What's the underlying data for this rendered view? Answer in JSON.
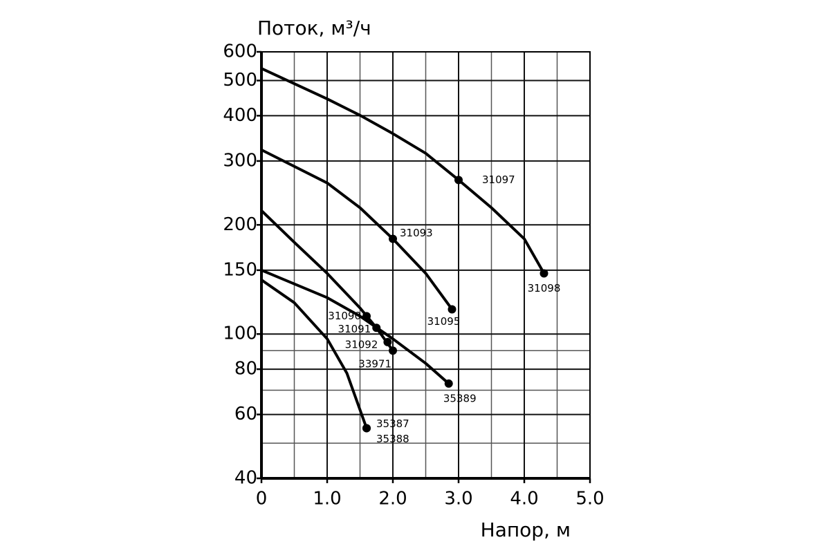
{
  "chart_data": {
    "type": "line",
    "ylabel": "Поток, м³/ч",
    "xlabel": "Напор, м",
    "log_y": true,
    "grid": true,
    "color": "#000000",
    "xlim": [
      0,
      5
    ],
    "ylim": [
      40,
      600
    ],
    "xticks": [
      0,
      {
        "value": 1,
        "label": "1.0"
      },
      {
        "value": 2,
        "label": "2.0"
      },
      {
        "value": 3,
        "label": "3.0"
      },
      {
        "value": 4,
        "label": "4.0"
      },
      {
        "value": 5,
        "label": "5.0"
      }
    ],
    "xminor_ticks": [
      0.5,
      1.5,
      2.5,
      3.5,
      4.5
    ],
    "yticks": [
      40,
      60,
      80,
      100,
      150,
      200,
      300,
      400,
      500,
      600
    ],
    "yminor_ticks": [
      50,
      70,
      90
    ],
    "series": [
      {
        "x": [
          0,
          1,
          1.5,
          2,
          2.5,
          3,
          3.5,
          4,
          4.3
        ],
        "values": [
          540,
          445,
          401,
          357,
          315,
          266,
          223,
          183,
          147
        ]
      },
      {
        "x": [
          0,
          1,
          1.5,
          2,
          2.5,
          2.9
        ],
        "values": [
          322,
          261,
          223,
          183,
          147,
          117
        ]
      },
      {
        "x": [
          0,
          0.5,
          1,
          1.5,
          1.75,
          2.0
        ],
        "values": [
          219,
          179,
          147,
          118,
          104,
          90
        ]
      },
      {
        "x": [
          0,
          1,
          1.5,
          2,
          2.5,
          2.85
        ],
        "values": [
          150,
          126,
          112,
          97,
          83,
          73
        ]
      },
      {
        "x": [
          0,
          0.5,
          1,
          1.3,
          1.6
        ],
        "values": [
          141,
          122,
          97,
          78,
          55
        ]
      }
    ],
    "points": [
      {
        "label": "31097",
        "x": 3.0,
        "y": 266
      },
      {
        "label": "31098",
        "x": 4.3,
        "y": 147
      },
      {
        "label": "31093",
        "x": 2.0,
        "y": 183
      },
      {
        "label": "31095",
        "x": 2.9,
        "y": 117
      },
      {
        "label": "31090",
        "x": 1.6,
        "y": 112
      },
      {
        "label": "31091",
        "x": 1.75,
        "y": 104
      },
      {
        "label": "31092",
        "x": 1.92,
        "y": 95
      },
      {
        "label": "33971",
        "x": 2.0,
        "y": 90
      },
      {
        "label": "35389",
        "x": 2.85,
        "y": 73
      },
      {
        "label": "35387",
        "x": 1.6,
        "y": 55
      },
      {
        "label": "35388",
        "x": 1.6,
        "y": 55
      }
    ]
  }
}
